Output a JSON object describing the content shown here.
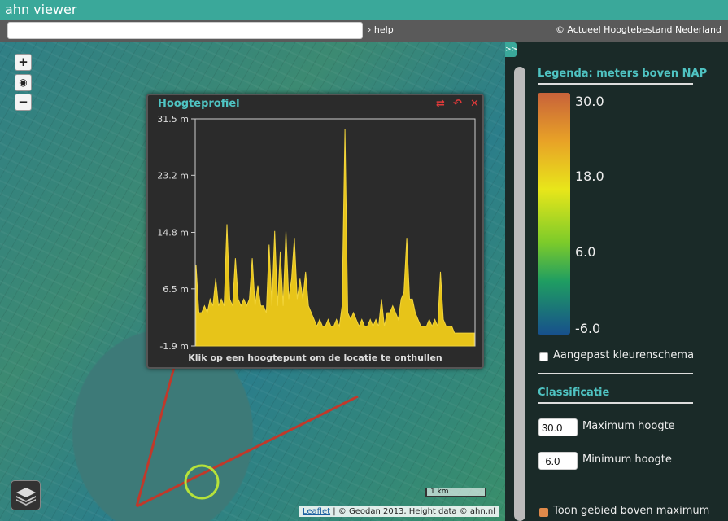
{
  "app": {
    "title": "ahn viewer"
  },
  "toolbar": {
    "search_value": "",
    "search_placeholder": "",
    "help_label": "help",
    "copyright": "© Actueel Hoogtebestand Nederland"
  },
  "map": {
    "zoom_in_label": "+",
    "zoom_out_label": "−",
    "scale_label": "1 km",
    "attribution_link": "Leaflet",
    "attribution_text": " | © Geodan 2013, Height data © ahn.nl"
  },
  "profile": {
    "title": "Hoogteprofiel",
    "hint": "Klik op een hoogtepunt om de locatie te onthullen",
    "colors": {
      "fill": "#e7c419",
      "title": "#4fc3c2"
    }
  },
  "chart_data": {
    "type": "area",
    "title": "",
    "xlabel": "",
    "ylabel": "",
    "ylim": [
      -1.9,
      31.5
    ],
    "yticks": [
      "31.5 m",
      "23.2 m",
      "14.8 m",
      "6.5 m",
      "-1.9 m"
    ],
    "ytick_values": [
      31.5,
      23.2,
      14.8,
      6.5,
      -1.9
    ],
    "series": [
      {
        "values": [
          10,
          3,
          3,
          4,
          3,
          5,
          4,
          8,
          4,
          5,
          4,
          16,
          5,
          4,
          11,
          5,
          4,
          5,
          4,
          5,
          11,
          4,
          7,
          4,
          4,
          3,
          13,
          4,
          15,
          4,
          12,
          4,
          15,
          5,
          8,
          14,
          5,
          8,
          5,
          9,
          4,
          3,
          2,
          1,
          2,
          1,
          1,
          2,
          1,
          1,
          2,
          1,
          4,
          30,
          3,
          2,
          3,
          2,
          1,
          2,
          1,
          1,
          2,
          1,
          2,
          1,
          5,
          1,
          3,
          3,
          4,
          3,
          2,
          5,
          6,
          14,
          5,
          5,
          3,
          2,
          1,
          1,
          1,
          2,
          1,
          2,
          1,
          9,
          2,
          1,
          1,
          1,
          0,
          0,
          0,
          0,
          0,
          0,
          0,
          0
        ]
      }
    ]
  },
  "sidebar": {
    "toggle_label": ">>",
    "legend_title": "Legenda: meters boven NAP",
    "legend_values": [
      "30.0",
      "18.0",
      "6.0",
      "-6.0"
    ],
    "custom_scheme_label": "Aangepast kleurenschema",
    "classification_title": "Classificatie",
    "max_value": "30.0",
    "max_label": "Maximum hoogte",
    "min_value": "-6.0",
    "min_label": "Minimum hoogte",
    "show_above_label": "Toon gebied boven maximum"
  }
}
